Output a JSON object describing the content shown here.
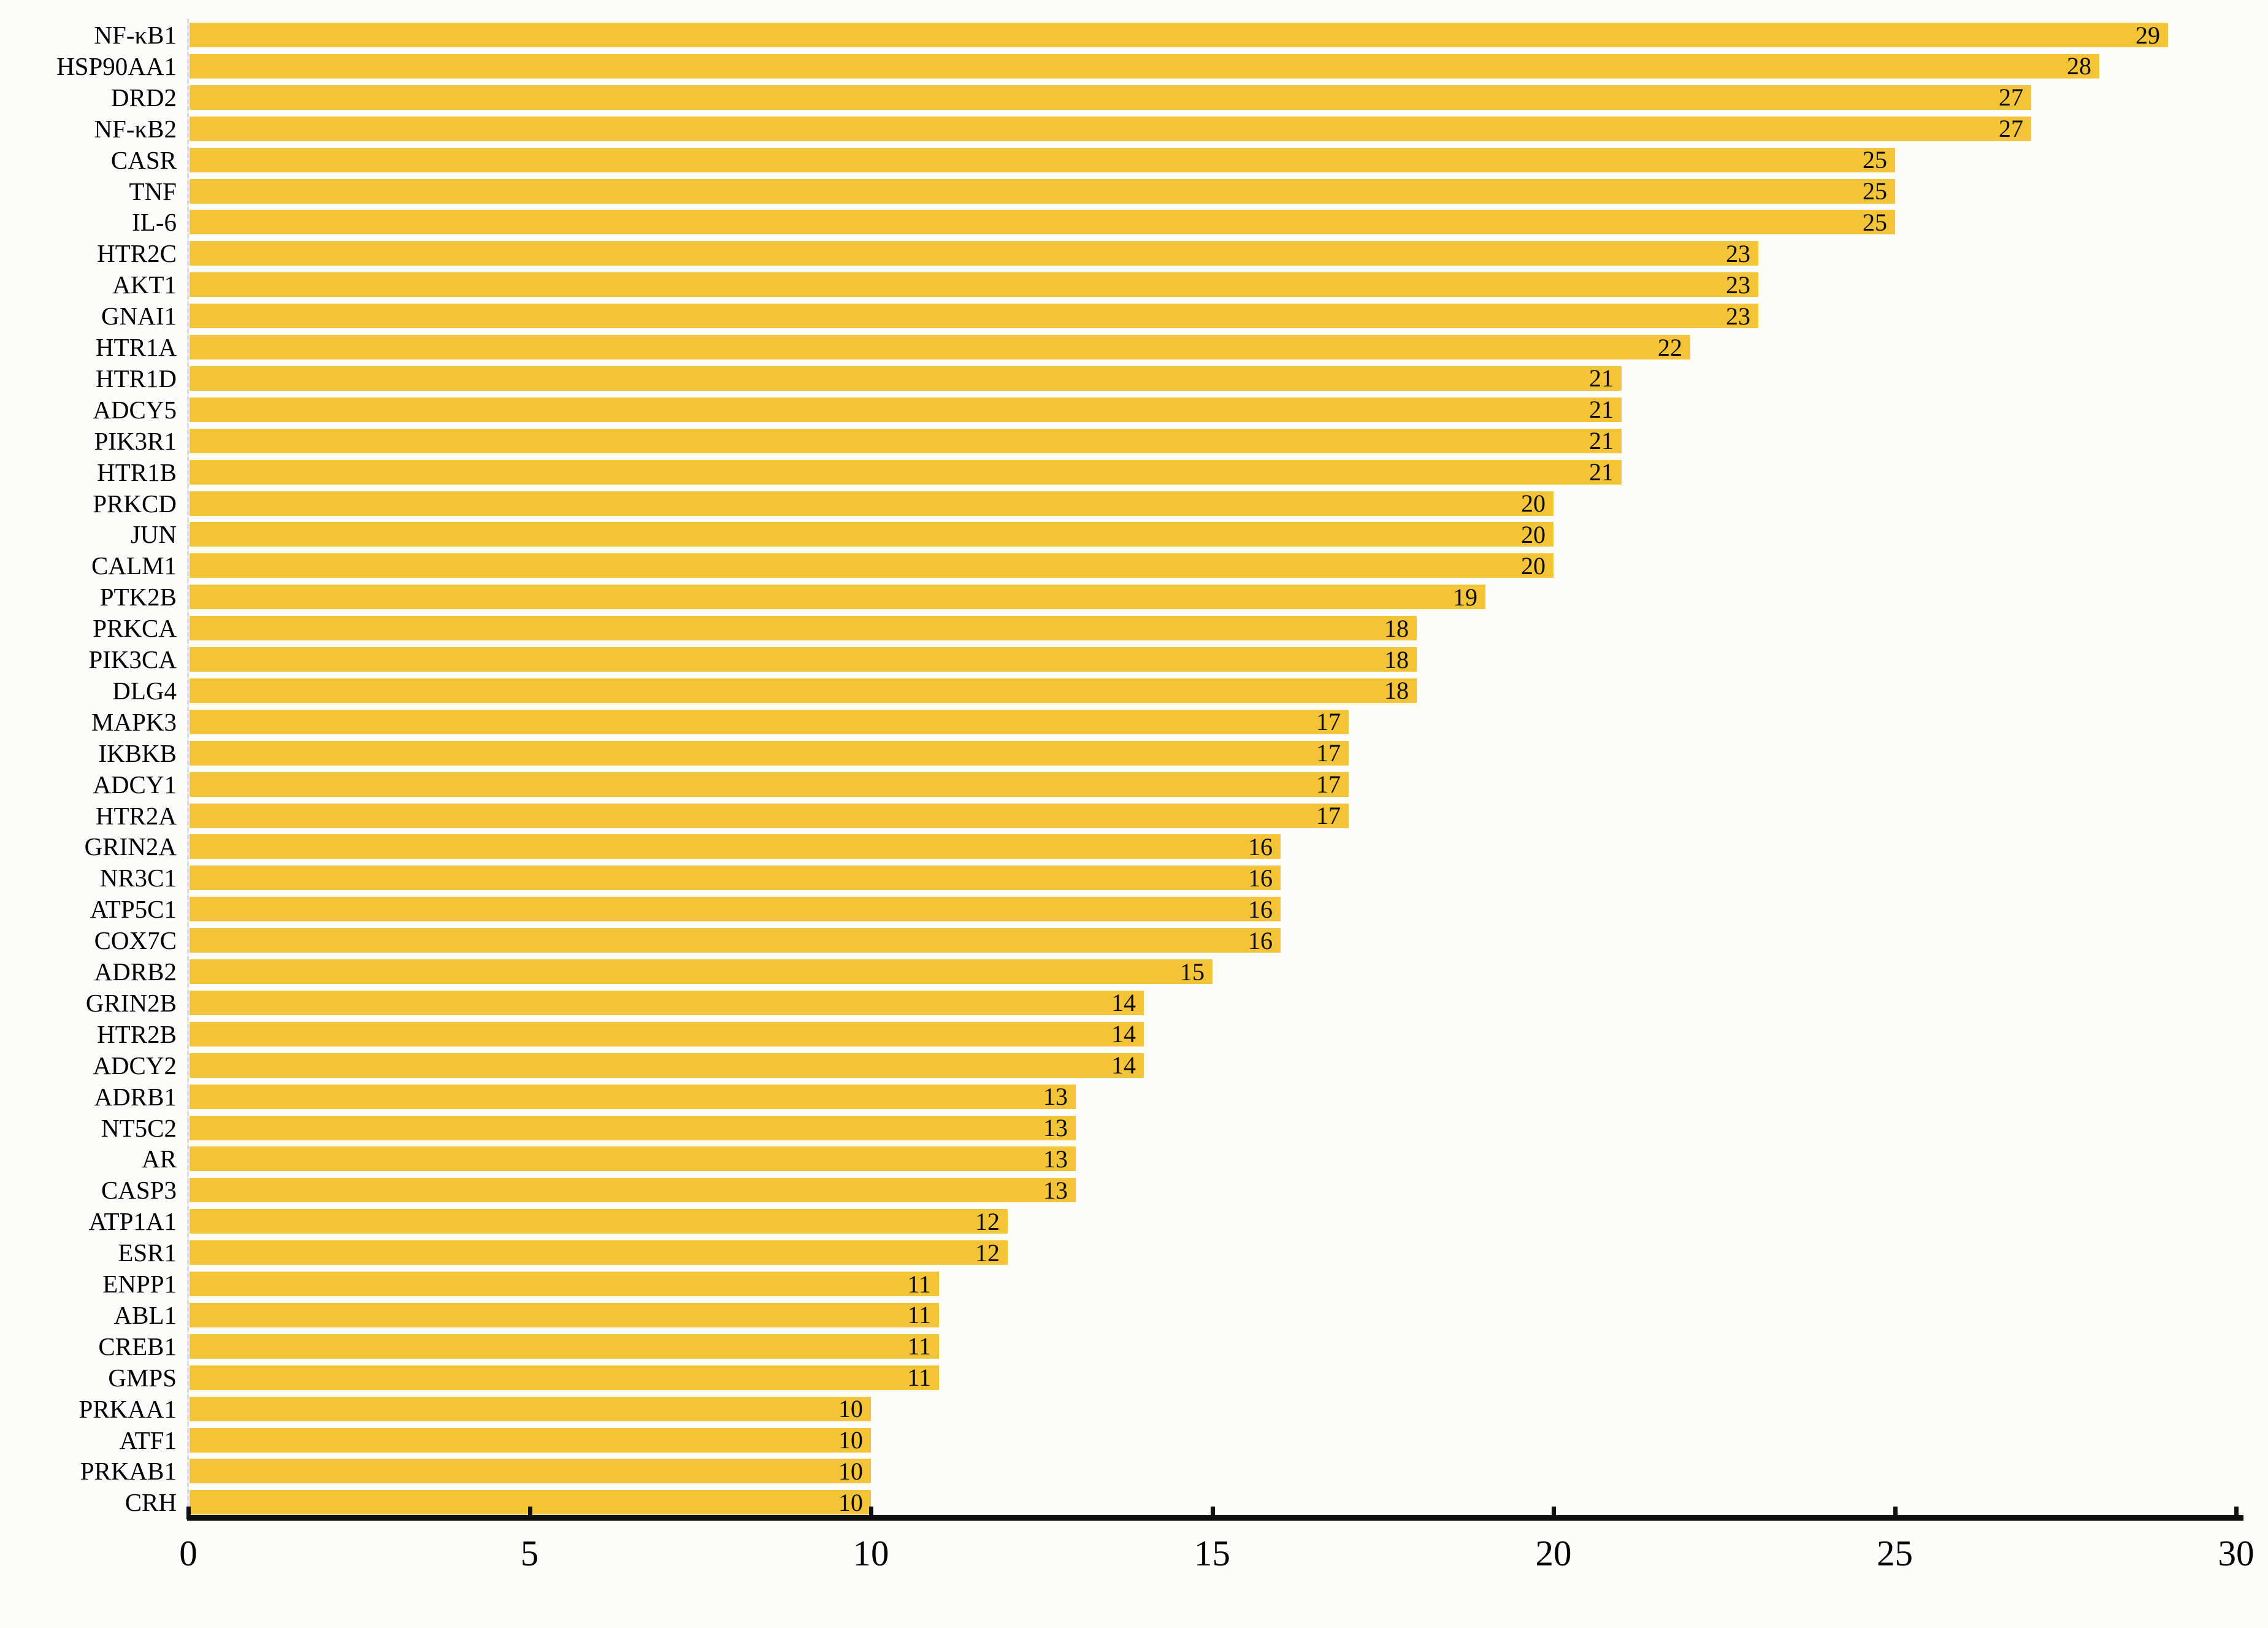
{
  "chart_data": {
    "type": "bar",
    "orientation": "horizontal",
    "title": "",
    "xlabel": "",
    "ylabel": "",
    "xlim": [
      0,
      30
    ],
    "x_ticks": [
      0,
      5,
      10,
      15,
      20,
      25,
      30
    ],
    "grid": false,
    "legend": "none",
    "bar_color": "#F3C437",
    "value_label_position": "inside-end",
    "categories": [
      "NF-κB1",
      "HSP90AA1",
      "DRD2",
      "NF-κB2",
      "CASR",
      "TNF",
      "IL-6",
      "HTR2C",
      "AKT1",
      "GNAI1",
      "HTR1A",
      "HTR1D",
      "ADCY5",
      "PIK3R1",
      "HTR1B",
      "PRKCD",
      "JUN",
      "CALM1",
      "PTK2B",
      "PRKCA",
      "PIK3CA",
      "DLG4",
      "MAPK3",
      "IKBKB",
      "ADCY1",
      "HTR2A",
      "GRIN2A",
      "NR3C1",
      "ATP5C1",
      "COX7C",
      "ADRB2",
      "GRIN2B",
      "HTR2B",
      "ADCY2",
      "ADRB1",
      "NT5C2",
      "AR",
      "CASP3",
      "ATP1A1",
      "ESR1",
      "ENPP1",
      "ABL1",
      "CREB1",
      "GMPS",
      "PRKAA1",
      "ATF1",
      "PRKAB1",
      "CRH"
    ],
    "values": [
      29,
      28,
      27,
      27,
      25,
      25,
      25,
      23,
      23,
      23,
      22,
      21,
      21,
      21,
      21,
      20,
      20,
      20,
      19,
      18,
      18,
      18,
      17,
      17,
      17,
      17,
      16,
      16,
      16,
      16,
      15,
      14,
      14,
      14,
      13,
      13,
      13,
      13,
      12,
      12,
      11,
      11,
      11,
      11,
      10,
      10,
      10,
      10
    ]
  }
}
